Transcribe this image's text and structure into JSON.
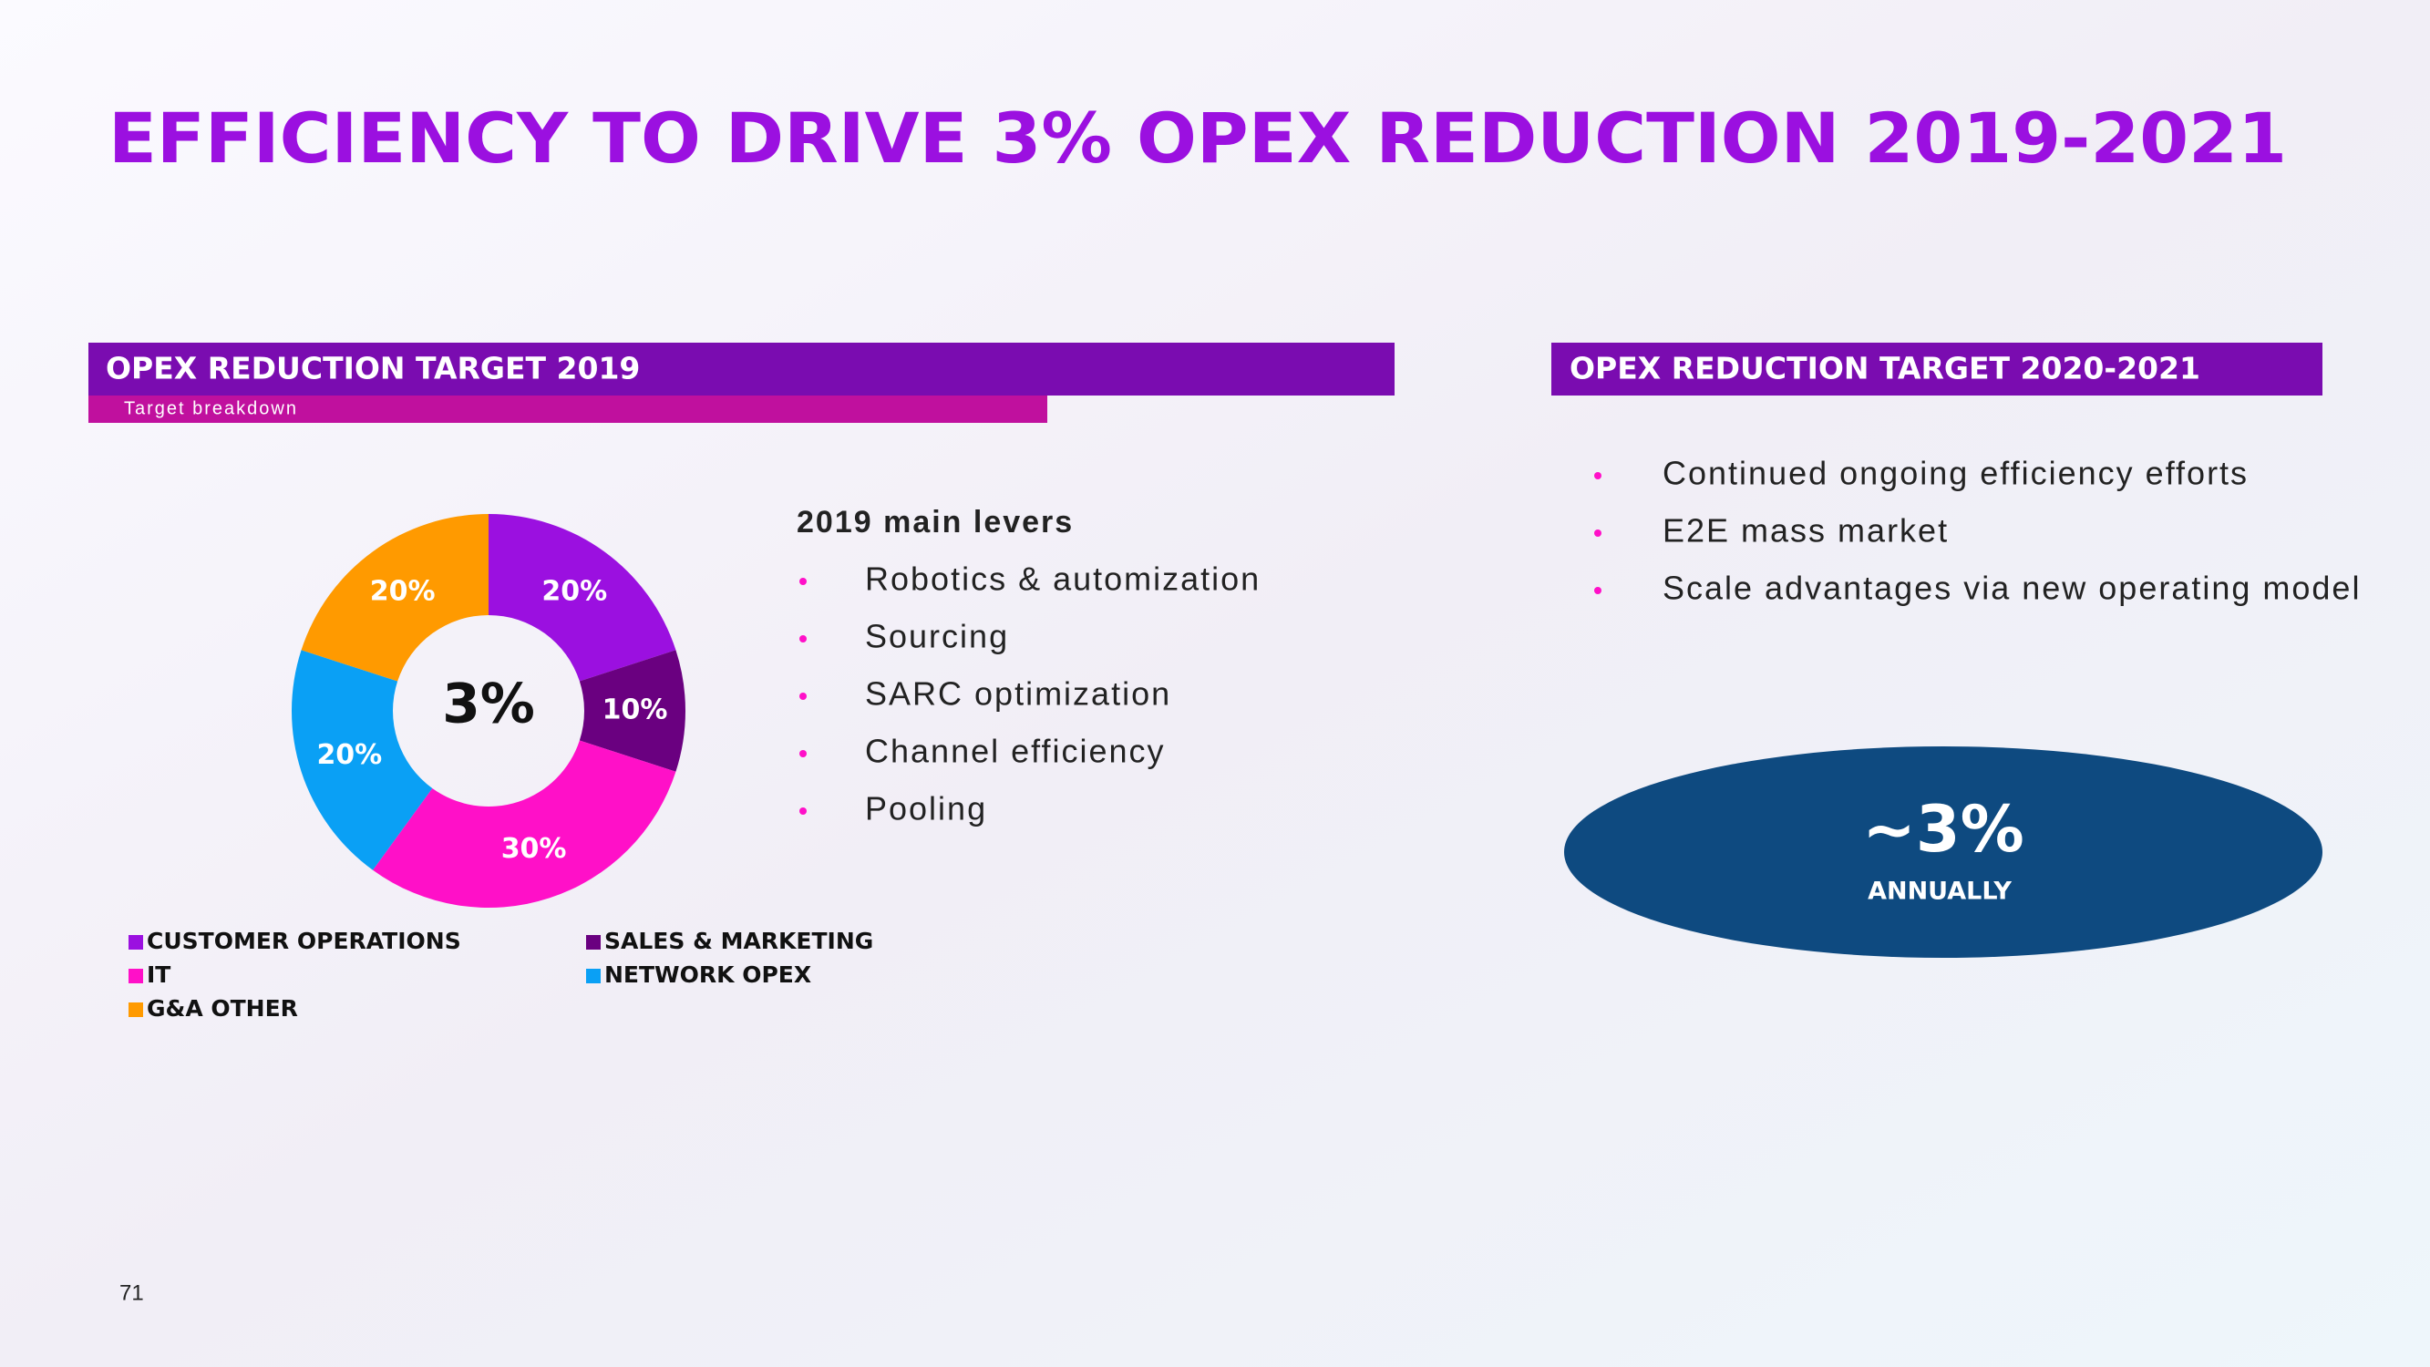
{
  "title": "EFFICIENCY TO DRIVE 3% OPEX REDUCTION 2019-2021",
  "left_panel": {
    "header": "OPEX REDUCTION TARGET 2019",
    "subheader": "Target breakdown",
    "levers_title": "2019 main levers",
    "levers": [
      "Robotics & automization",
      "Sourcing",
      "SARC optimization",
      "Channel efficiency",
      "Pooling"
    ]
  },
  "right_panel": {
    "header": "OPEX REDUCTION TARGET 2020-2021",
    "bullets": [
      "Continued ongoing efficiency efforts",
      "E2E mass market",
      "Scale advantages via new operating model"
    ],
    "highlight": {
      "value": "~3%",
      "label": "ANNUALLY"
    }
  },
  "page_number": "71",
  "chart_data": {
    "type": "pie",
    "center_label": "3%",
    "categories": [
      "CUSTOMER OPERATIONS",
      "SALES & MARKETING",
      "IT",
      "NETWORK OPEX",
      "G&A OTHER"
    ],
    "values": [
      20,
      10,
      30,
      20,
      20
    ],
    "value_labels": [
      "20%",
      "10%",
      "30%",
      "20%",
      "20%"
    ],
    "colors": [
      "#9b10e0",
      "#6a0080",
      "#ff10c8",
      "#0aa0f5",
      "#ff9a00"
    ]
  }
}
